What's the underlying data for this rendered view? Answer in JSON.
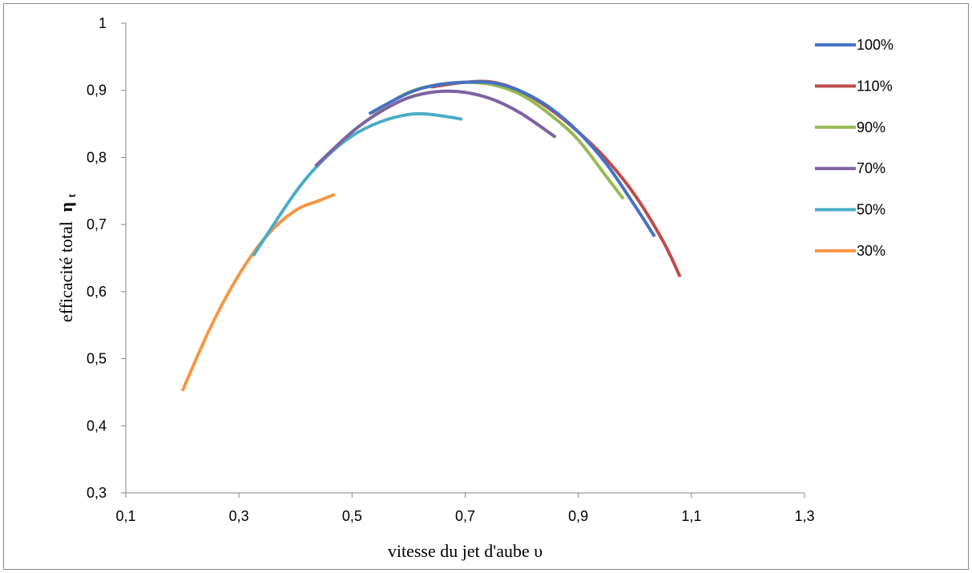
{
  "chart_data": {
    "type": "line",
    "xlabel": "vitesse du jet d'aube υ",
    "ylabel": "efficacité total",
    "ylabel_symbol": "η",
    "ylabel_subscript": "t",
    "xlim": [
      0.1,
      1.3
    ],
    "ylim": [
      0.3,
      1.0
    ],
    "x_ticks": [
      "0,1",
      "0,3",
      "0,5",
      "0,7",
      "0,9",
      "1,1",
      "1,3"
    ],
    "x_tick_values": [
      0.1,
      0.3,
      0.5,
      0.7,
      0.9,
      1.1,
      1.3
    ],
    "y_ticks": [
      "0,3",
      "0,4",
      "0,5",
      "0,6",
      "0,7",
      "0,8",
      "0,9",
      "1"
    ],
    "y_tick_values": [
      0.3,
      0.4,
      0.5,
      0.6,
      0.7,
      0.8,
      0.9,
      1.0
    ],
    "grid": false,
    "legend_position": "right",
    "series": [
      {
        "name": "100%",
        "color": "#4472c4",
        "x": [
          0.53,
          0.6,
          0.65,
          0.7,
          0.75,
          0.8,
          0.85,
          0.9,
          0.95,
          1.0,
          1.035
        ],
        "y": [
          0.865,
          0.896,
          0.908,
          0.912,
          0.911,
          0.898,
          0.874,
          0.838,
          0.79,
          0.728,
          0.682
        ]
      },
      {
        "name": "110%",
        "color": "#be4b48",
        "x": [
          0.64,
          0.7,
          0.75,
          0.8,
          0.85,
          0.9,
          0.95,
          1.0,
          1.05,
          1.08
        ],
        "y": [
          0.905,
          0.912,
          0.912,
          0.898,
          0.872,
          0.838,
          0.797,
          0.744,
          0.675,
          0.622
        ]
      },
      {
        "name": "90%",
        "color": "#98b954",
        "x": [
          0.535,
          0.6,
          0.65,
          0.7,
          0.75,
          0.8,
          0.85,
          0.9,
          0.95,
          0.98
        ],
        "y": [
          0.866,
          0.897,
          0.908,
          0.912,
          0.908,
          0.893,
          0.864,
          0.826,
          0.771,
          0.738
        ]
      },
      {
        "name": "70%",
        "color": "#7e62a1",
        "x": [
          0.435,
          0.5,
          0.55,
          0.6,
          0.65,
          0.7,
          0.75,
          0.8,
          0.86
        ],
        "y": [
          0.787,
          0.838,
          0.868,
          0.889,
          0.898,
          0.897,
          0.886,
          0.865,
          0.83
        ]
      },
      {
        "name": "50%",
        "color": "#4bacc6",
        "x": [
          0.325,
          0.4,
          0.45,
          0.5,
          0.55,
          0.6,
          0.64,
          0.695
        ],
        "y": [
          0.653,
          0.748,
          0.797,
          0.832,
          0.853,
          0.864,
          0.864,
          0.857
        ]
      },
      {
        "name": "30%",
        "color": "#f79646",
        "x": [
          0.2,
          0.25,
          0.3,
          0.35,
          0.4,
          0.44,
          0.47
        ],
        "y": [
          0.452,
          0.547,
          0.625,
          0.684,
          0.721,
          0.735,
          0.745
        ]
      }
    ]
  }
}
